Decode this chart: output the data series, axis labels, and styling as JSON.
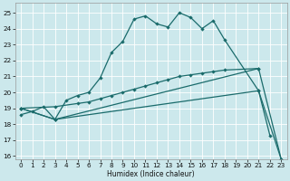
{
  "xlabel": "Humidex (Indice chaleur)",
  "bg_color": "#cce8ec",
  "line_color": "#1a6b6b",
  "grid_color": "#ffffff",
  "xlim": [
    -0.5,
    23.5
  ],
  "ylim": [
    15.8,
    25.6
  ],
  "xticks": [
    0,
    1,
    2,
    3,
    4,
    5,
    6,
    7,
    8,
    9,
    10,
    11,
    12,
    13,
    14,
    15,
    16,
    17,
    18,
    19,
    20,
    21,
    22,
    23
  ],
  "yticks": [
    16,
    17,
    18,
    19,
    20,
    21,
    22,
    23,
    24,
    25
  ],
  "series": [
    {
      "x": [
        0,
        1,
        2,
        3,
        4,
        5,
        6,
        7,
        8,
        9,
        10,
        11,
        12,
        13,
        14,
        15,
        16,
        17,
        18,
        21,
        22
      ],
      "y": [
        18.6,
        18.8,
        19.1,
        18.3,
        19.5,
        19.8,
        20.0,
        20.9,
        22.5,
        23.2,
        24.6,
        24.8,
        24.3,
        24.1,
        25.0,
        24.7,
        24.0,
        24.5,
        23.3,
        20.1,
        17.3
      ]
    },
    {
      "x": [
        0,
        3,
        5,
        6,
        7,
        8,
        9,
        10,
        11,
        12,
        13,
        14,
        15,
        16,
        17,
        18,
        21
      ],
      "y": [
        19.0,
        19.1,
        19.3,
        19.4,
        19.6,
        19.8,
        20.0,
        20.2,
        20.4,
        20.6,
        20.8,
        21.0,
        21.1,
        21.2,
        21.3,
        21.4,
        21.5
      ]
    },
    {
      "x": [
        0,
        3,
        21,
        23
      ],
      "y": [
        19.0,
        18.3,
        20.1,
        15.8
      ]
    },
    {
      "x": [
        0,
        3,
        21,
        23
      ],
      "y": [
        19.0,
        18.3,
        21.5,
        15.8
      ]
    }
  ],
  "markersize": 2.2,
  "linewidth": 0.9
}
